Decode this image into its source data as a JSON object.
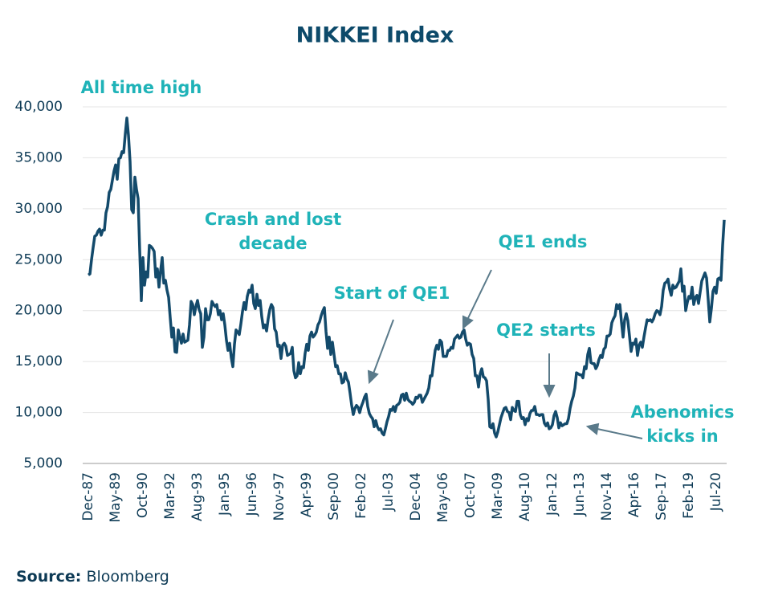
{
  "chart_data": {
    "type": "line",
    "title": "NIKKEI Index",
    "color": "#134a6b",
    "annotation_color": "#1fb3b8",
    "ylim": [
      5000,
      40000
    ],
    "yticks": [
      {
        "value": 5000,
        "label": "5,000"
      },
      {
        "value": 10000,
        "label": "10,000"
      },
      {
        "value": 15000,
        "label": "15,000"
      },
      {
        "value": 20000,
        "label": "20,000"
      },
      {
        "value": 25000,
        "label": "25,000"
      },
      {
        "value": 30000,
        "label": "30,000"
      },
      {
        "value": 35000,
        "label": "35,000"
      },
      {
        "value": 40000,
        "label": "40,000"
      }
    ],
    "grid": true,
    "categories": [
      "Dec-87",
      null,
      null,
      null,
      null,
      null,
      null,
      null,
      null,
      null,
      null,
      null,
      null,
      null,
      null,
      null,
      null,
      "May-89",
      null,
      null,
      null,
      null,
      null,
      null,
      null,
      null,
      null,
      null,
      null,
      null,
      null,
      null,
      null,
      null,
      "Oct-90",
      null,
      null,
      null,
      null,
      null,
      null,
      null,
      null,
      null,
      null,
      null,
      null,
      null,
      null,
      null,
      null,
      "Mar-92",
      null,
      null,
      null,
      null,
      null,
      null,
      null,
      null,
      null,
      null,
      null,
      null,
      null,
      null,
      null,
      null,
      "Aug-93",
      null,
      null,
      null,
      null,
      null,
      null,
      null,
      null,
      null,
      null,
      null,
      null,
      null,
      null,
      null,
      null,
      "Jan-95",
      null,
      null,
      null,
      null,
      null,
      null,
      null,
      null,
      null,
      null,
      null,
      null,
      null,
      null,
      null,
      null,
      "Jun-96",
      null,
      null,
      null,
      null,
      null,
      null,
      null,
      null,
      null,
      null,
      null,
      null,
      null,
      null,
      null,
      null,
      "Nov-97",
      null,
      null,
      null,
      null,
      null,
      null,
      null,
      null,
      null,
      null,
      null,
      null,
      null,
      null,
      null,
      null,
      "Apr-99",
      null,
      null,
      null,
      null,
      null,
      null,
      null,
      null,
      null,
      null,
      null,
      null,
      null,
      null,
      null,
      null,
      "Sep-00",
      null,
      null,
      null,
      null,
      null,
      null,
      null,
      null,
      null,
      null,
      null,
      null,
      null,
      null,
      null,
      null,
      "Feb-02",
      null,
      null,
      null,
      null,
      null,
      null,
      null,
      null,
      null,
      null,
      null,
      null,
      null,
      null,
      null,
      null,
      "Jul-03",
      null,
      null,
      null,
      null,
      null,
      null,
      null,
      null,
      null,
      null,
      null,
      null,
      null,
      null,
      null,
      null,
      "Dec-04",
      null,
      null,
      null,
      null,
      null,
      null,
      null,
      null,
      null,
      null,
      null,
      null,
      null,
      null,
      null,
      null,
      "May-06",
      null,
      null,
      null,
      null,
      null,
      null,
      null,
      null,
      null,
      null,
      null,
      null,
      null,
      null,
      null,
      null,
      "Oct-07",
      null,
      null,
      null,
      null,
      null,
      null,
      null,
      null,
      null,
      null,
      null,
      null,
      null,
      null,
      null,
      null,
      "Mar-09",
      null,
      null,
      null,
      null,
      null,
      null,
      null,
      null,
      null,
      null,
      null,
      null,
      null,
      null,
      null,
      null,
      "Aug-10",
      null,
      null,
      null,
      null,
      null,
      null,
      null,
      null,
      null,
      null,
      null,
      null,
      null,
      null,
      null,
      null,
      "Jan-12",
      null,
      null,
      null,
      null,
      null,
      null,
      null,
      null,
      null,
      null,
      null,
      null,
      null,
      null,
      null,
      null,
      "Jun-13",
      null,
      null,
      null,
      null,
      null,
      null,
      null,
      null,
      null,
      null,
      null,
      null,
      null,
      null,
      null,
      null,
      "Nov-14",
      null,
      null,
      null,
      null,
      null,
      null,
      null,
      null,
      null,
      null,
      null,
      null,
      null,
      null,
      null,
      null,
      "Apr-16",
      null,
      null,
      null,
      null,
      null,
      null,
      null,
      null,
      null,
      null,
      null,
      null,
      null,
      null,
      null,
      null,
      "Sep-17",
      null,
      null,
      null,
      null,
      null,
      null,
      null,
      null,
      null,
      null,
      null,
      null,
      null,
      null,
      null,
      null,
      "Feb-19",
      null,
      null,
      null,
      null,
      null,
      null,
      null,
      null,
      null,
      null,
      null,
      null,
      null,
      null,
      null,
      null,
      "Jul-20",
      null,
      null,
      null,
      null,
      null
    ],
    "values": [
      23500,
      23600,
      25000,
      26200,
      27300,
      27400,
      27800,
      28000,
      27400,
      27900,
      27900,
      29600,
      30200,
      31600,
      31900,
      32800,
      33700,
      34300,
      32900,
      34900,
      35000,
      35600,
      35500,
      37300,
      38900,
      37200,
      34600,
      29900,
      29600,
      33100,
      31900,
      31000,
      25900,
      20980,
      25200,
      22500,
      23800,
      23300,
      26400,
      26300,
      26100,
      25800,
      23300,
      24100,
      22300,
      23900,
      25200,
      22700,
      22980,
      22000,
      21300,
      19300,
      17400,
      18300,
      15950,
      15900,
      18100,
      17400,
      16800,
      17700,
      16900,
      17000,
      17100,
      18600,
      20900,
      20600,
      19600,
      20400,
      21000,
      20100,
      19700,
      16400,
      17400,
      20200,
      19100,
      19100,
      19700,
      20900,
      20600,
      20400,
      20600,
      19600,
      19990,
      19100,
      19700,
      18600,
      17100,
      16100,
      16800,
      15400,
      14500,
      16700,
      18100,
      17900,
      17650,
      18700,
      19900,
      20800,
      20100,
      21400,
      22000,
      21800,
      22500,
      20700,
      20200,
      21600,
      20500,
      21000,
      19400,
      18300,
      18600,
      18000,
      19200,
      20100,
      20600,
      20300,
      18200,
      17900,
      16500,
      16600,
      15300,
      16600,
      16800,
      16500,
      15600,
      15700,
      15800,
      16400,
      14100,
      13400,
      13600,
      14900,
      13800,
      14500,
      14400,
      15800,
      16700,
      16100,
      17500,
      17900,
      17400,
      17600,
      17900,
      18600,
      18900,
      19500,
      19960,
      20300,
      17970,
      16300,
      17400,
      15700,
      16900,
      15700,
      14500,
      14600,
      13800,
      13800,
      12900,
      13000,
      13900,
      13300,
      12970,
      11900,
      10700,
      9800,
      10400,
      10700,
      10500,
      9990,
      10600,
      11000,
      11500,
      11800,
      10600,
      9900,
      9600,
      9400,
      8600,
      9200,
      8600,
      8300,
      8400,
      7970,
      7800,
      8400,
      9100,
      9600,
      10300,
      10200,
      10600,
      10100,
      10700,
      10800,
      11000,
      11700,
      11800,
      11200,
      11900,
      11300,
      11100,
      11000,
      10800,
      11000,
      11500,
      11400,
      11700,
      11700,
      11000,
      11300,
      11600,
      11900,
      12400,
      13600,
      13600,
      14900,
      16100,
      16600,
      16200,
      17100,
      16900,
      15500,
      15500,
      15500,
      16100,
      16100,
      16400,
      16300,
      17200,
      17400,
      17600,
      17300,
      17400,
      17900,
      18100,
      17200,
      16600,
      16800,
      16700,
      15700,
      15300,
      13600,
      13600,
      12500,
      13800,
      14300,
      13500,
      13400,
      13100,
      11300,
      8600,
      8500,
      8900,
      7990,
      7600,
      8100,
      8800,
      9500,
      9960,
      10400,
      10500,
      10100,
      10000,
      9300,
      10500,
      10200,
      10100,
      11100,
      11100,
      9800,
      9400,
      9500,
      8800,
      9400,
      9200,
      9900,
      10200,
      10200,
      10600,
      9800,
      9800,
      9700,
      9800,
      9800,
      8960,
      8700,
      8990,
      8400,
      8500,
      8800,
      9700,
      10100,
      9500,
      8500,
      9000,
      8700,
      8800,
      8900,
      8900,
      9400,
      10400,
      11100,
      11600,
      12400,
      13900,
      13800,
      13700,
      13700,
      13400,
      14500,
      14300,
      15700,
      16300,
      14900,
      14800,
      14800,
      14300,
      14600,
      15200,
      15600,
      15400,
      16200,
      16400,
      17500,
      17500,
      17700,
      18800,
      19200,
      19500,
      20600,
      20200,
      20600,
      18900,
      17400,
      19100,
      19700,
      19000,
      17500,
      16000,
      16800,
      16700,
      17200,
      15600,
      16600,
      16900,
      16400,
      17400,
      18300,
      19100,
      19000,
      19100,
      18900,
      19200,
      19700,
      20000,
      19900,
      19600,
      20400,
      22000,
      22700,
      22800,
      23100,
      22100,
      21500,
      22500,
      22200,
      22300,
      22600,
      22900,
      24100,
      21900,
      22400,
      20000,
      20800,
      21400,
      21200,
      22300,
      20600,
      21300,
      21500,
      20700,
      21800,
      22900,
      23300,
      23700,
      23200,
      21100,
      18900,
      20200,
      21900,
      22300,
      21700,
      23100,
      23200,
      22980,
      26400,
      28900
    ],
    "annotations": [
      {
        "text": [
          "All time high"
        ]
      },
      {
        "text": [
          "Crash and lost",
          "decade"
        ]
      },
      {
        "text": [
          "Start of QE1"
        ]
      },
      {
        "text": [
          "QE1 ends"
        ]
      },
      {
        "text": [
          "QE2 starts"
        ]
      },
      {
        "text": [
          "Abenomics",
          "kicks in"
        ]
      }
    ],
    "source_label": "Source:",
    "source": "Bloomberg"
  }
}
